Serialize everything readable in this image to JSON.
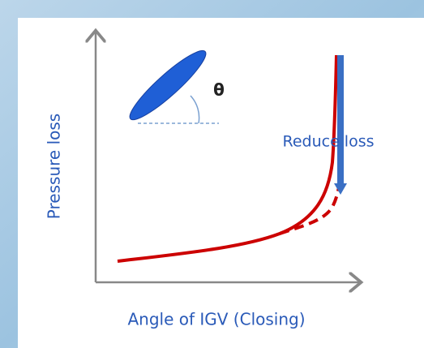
{
  "diagram": {
    "y_axis_label": "Pressure loss",
    "x_axis_label": "Angle of IGV (Closing)",
    "angle_symbol": "θ",
    "annotation": "Reduce loss"
  }
}
